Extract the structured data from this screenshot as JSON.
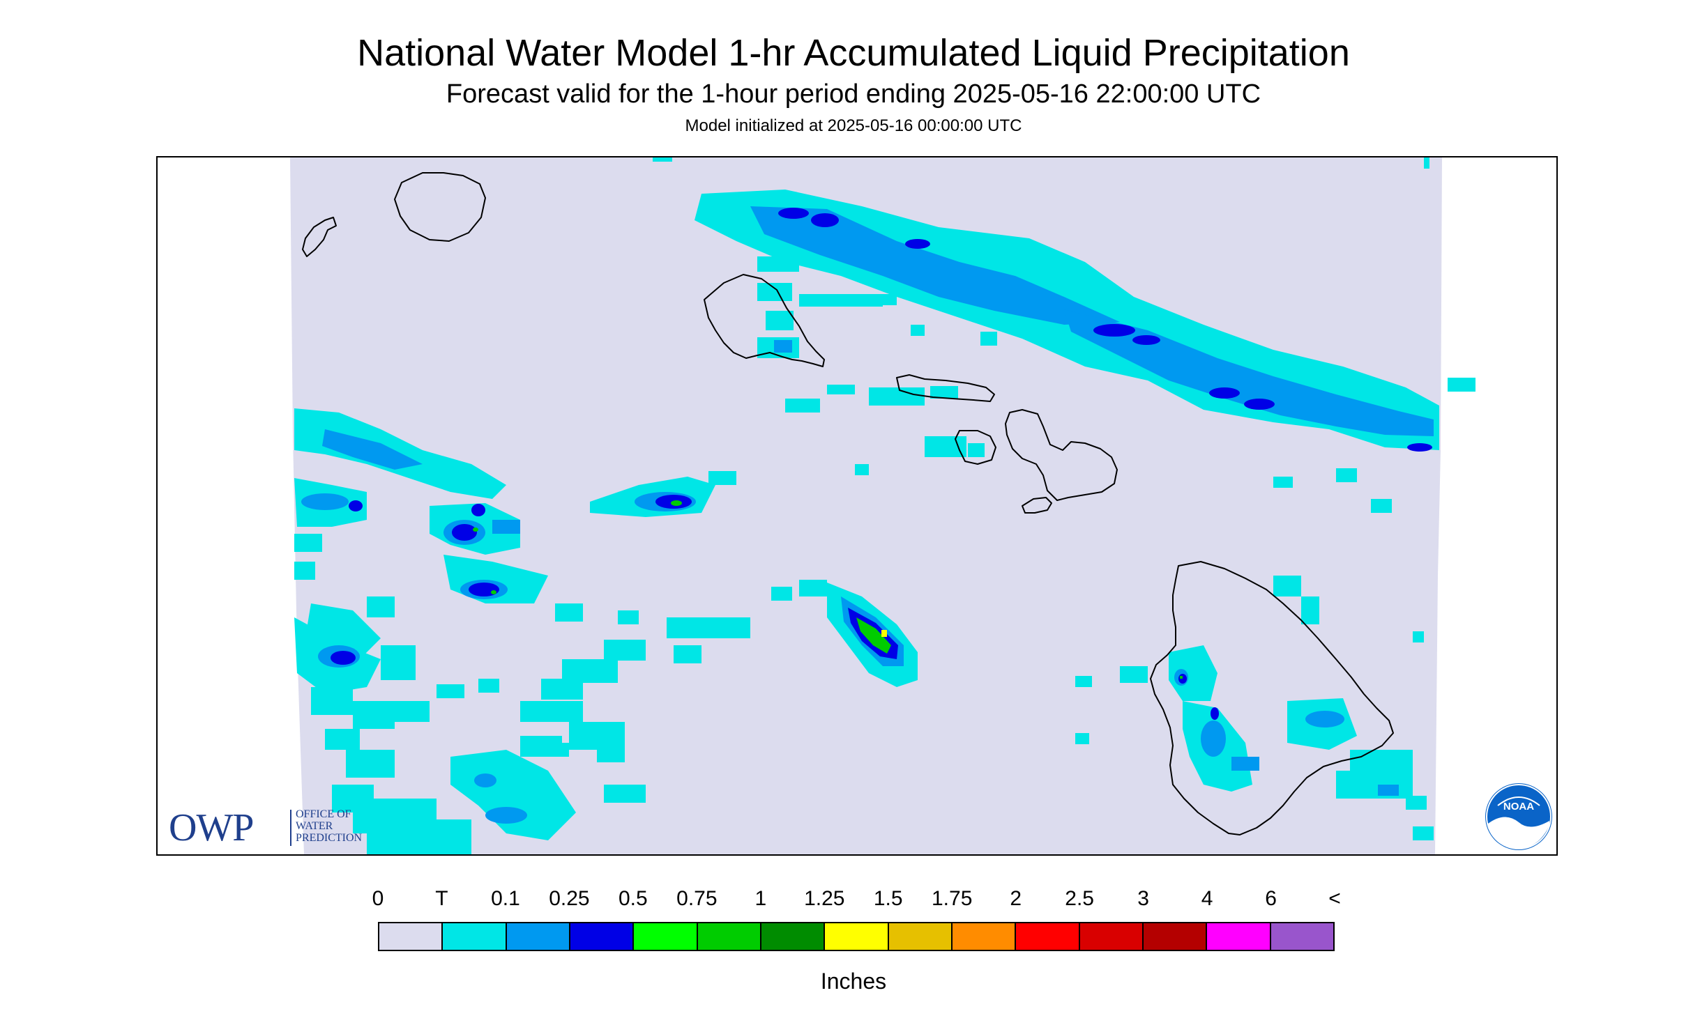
{
  "title": "National Water Model 1-hr Accumulated Liquid Precipitation",
  "subtitle": "Forecast valid for the 1-hour period ending 2025-05-16 22:00:00 UTC",
  "initialized": "Model initialized at 2025-05-16 00:00:00 UTC",
  "logos": {
    "owp_letters": "OWP",
    "owp_line1": "OFFICE OF",
    "owp_line2": "WATER",
    "owp_line3": "PREDICTION",
    "noaa": "NOAA"
  },
  "colors": {
    "background": "#dcdcee",
    "trace": "#00e6e6",
    "light_blue": "#0099f0",
    "blue": "#0000e6",
    "green": "#00cc00",
    "yellow": "#ffff00"
  },
  "legend": {
    "labels": [
      "0",
      "T",
      "0.1",
      "0.25",
      "0.5",
      "0.75",
      "1",
      "1.25",
      "1.5",
      "1.75",
      "2",
      "2.5",
      "3",
      "4",
      "6",
      "<"
    ],
    "colors": [
      "#dcdcee",
      "#00e6e6",
      "#0099f0",
      "#0000e6",
      "#00ff00",
      "#00cc00",
      "#008c00",
      "#ffff00",
      "#e6c000",
      "#ff8c00",
      "#ff0000",
      "#d90000",
      "#b40000",
      "#ff00ff",
      "#9955cc"
    ],
    "units": "Inches"
  }
}
